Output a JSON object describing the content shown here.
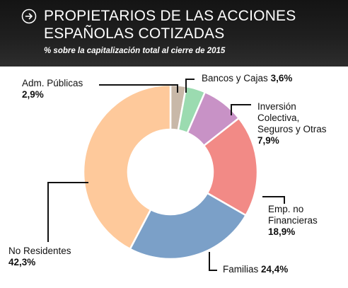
{
  "header": {
    "title_line1": "PROPIETARIOS DE LAS ACCIONES",
    "title_line2": "ESPAÑOLAS COTIZADAS",
    "subtitle": "% sobre la capitalización total al cierre de 2015",
    "icon": "arrow-right-circle-icon"
  },
  "chart_data": {
    "type": "pie",
    "donut": true,
    "title": "PROPIETARIOS DE LAS ACCIONES ESPAÑOLAS COTIZADAS",
    "subtitle": "% sobre la capitalización total al cierre de 2015",
    "slices": [
      {
        "label": "Adm. Públicas",
        "value": 2.9,
        "value_text": "2,9%",
        "color": "#c8b8a8"
      },
      {
        "label": "Bancos y Cajas",
        "value": 3.6,
        "value_text": "3,6%",
        "color": "#9bdbb0"
      },
      {
        "label": "Inversión Colectiva, Seguros y Otras",
        "value": 7.9,
        "value_text": "7,9%",
        "color": "#c892c6"
      },
      {
        "label": "Emp. no Financieras",
        "value": 18.9,
        "value_text": "18,9%",
        "color": "#f28a86"
      },
      {
        "label": "Familias",
        "value": 24.4,
        "value_text": "24,4%",
        "color": "#7ba0c8"
      },
      {
        "label": "No Residentes",
        "value": 42.3,
        "value_text": "42,3%",
        "color": "#fec99b"
      }
    ]
  }
}
